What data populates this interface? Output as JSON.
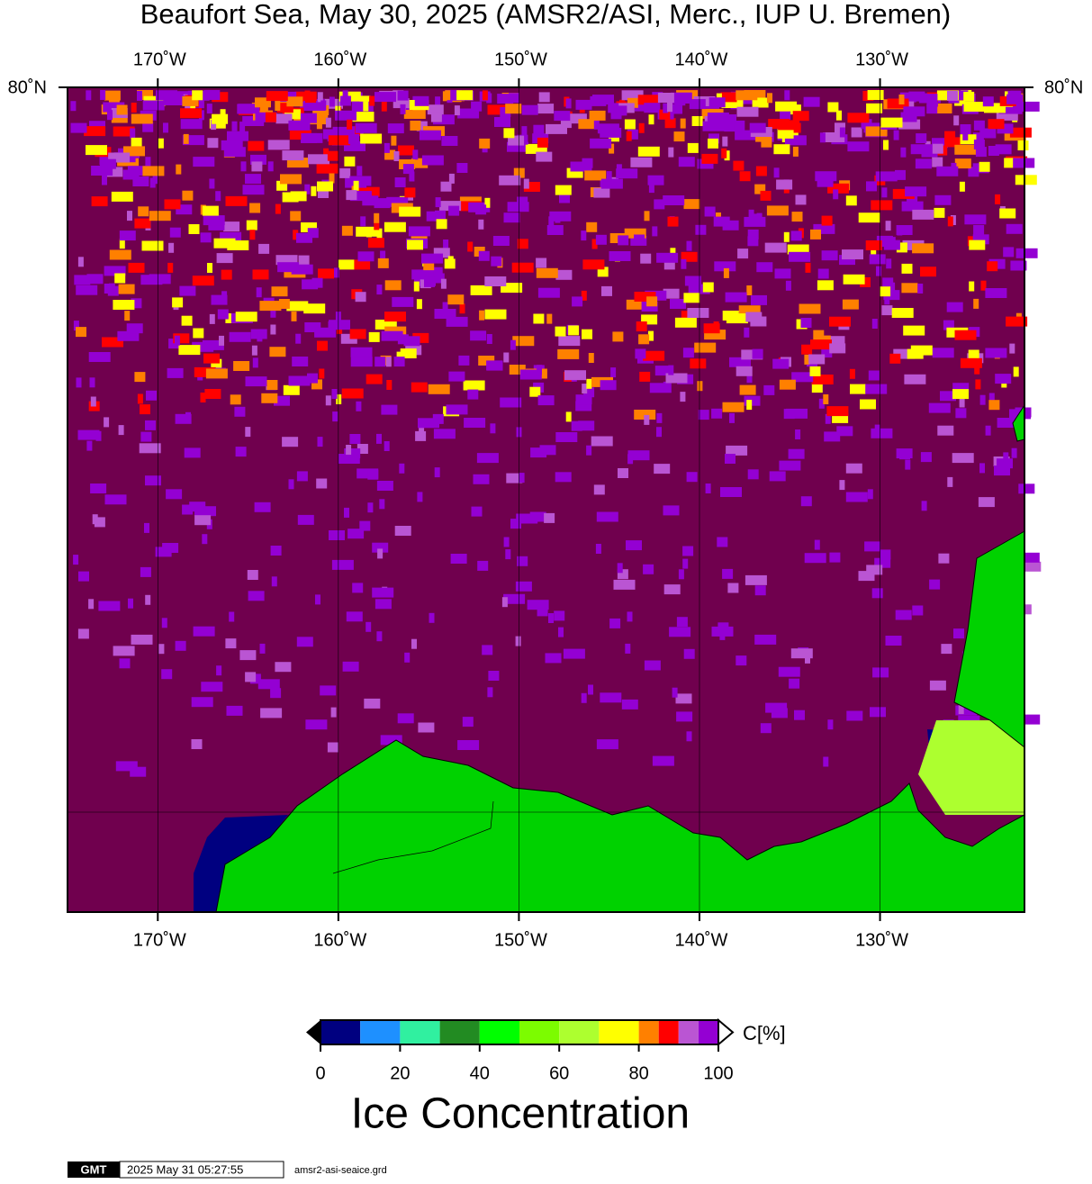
{
  "title": "Beaufort Sea, May 30, 2025 (AMSR2/ASI, Merc., IUP U. Bremen)",
  "map": {
    "xlim": [
      -175,
      -122
    ],
    "lon_ticks": [
      {
        "value": -170,
        "label": "170˚W"
      },
      {
        "value": -160,
        "label": "160˚W"
      },
      {
        "value": -150,
        "label": "150˚W"
      },
      {
        "value": -140,
        "label": "140˚W"
      },
      {
        "value": -130,
        "label": "130˚W"
      }
    ],
    "lat_label": "80˚N"
  },
  "colorbar": {
    "title": "Ice Concentration",
    "unit": "C[%]",
    "lim": [
      0,
      100
    ],
    "ticks": [
      0,
      20,
      40,
      60,
      80,
      100
    ],
    "bounds": [
      0,
      10,
      20,
      30,
      40,
      50,
      60,
      70,
      80,
      85,
      90,
      95,
      100
    ],
    "colors": [
      "#000080",
      "#1e90ff",
      "#30f0a0",
      "#228b22",
      "#00ff00",
      "#7cfc00",
      "#adff2f",
      "#ffff00",
      "#ff8000",
      "#ff0000",
      "#ba55d3",
      "#9400d3"
    ]
  },
  "footer": {
    "logo": "GMT",
    "timestamp": "2025 May 31 05:27:55",
    "file": "amsr2-asi-seaice.grd"
  }
}
